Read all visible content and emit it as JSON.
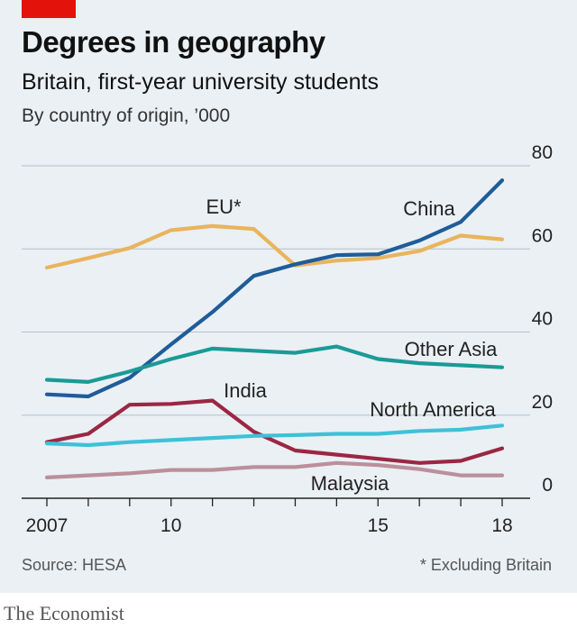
{
  "header": {
    "title": "Degrees in geography",
    "subtitle": "Britain, first-year university students",
    "unit": "By country of origin, ’000"
  },
  "footer": {
    "source": "Source: HESA",
    "footnote": "* Excluding Britain",
    "brand": "The Economist"
  },
  "colors": {
    "accent": "#e3120b",
    "panel": "#eaf0f4",
    "grid": "#b3c0c9"
  },
  "chart_data": {
    "type": "line",
    "x": [
      2007,
      2008,
      2009,
      2010,
      2011,
      2012,
      2013,
      2014,
      2015,
      2016,
      2017,
      2018
    ],
    "x_tick_values": [
      2007,
      2010,
      2015,
      2018
    ],
    "x_tick_labels": [
      "2007",
      "10",
      "15",
      "18"
    ],
    "xlim": [
      2007,
      2018
    ],
    "ylim": [
      0,
      80
    ],
    "y_ticks": [
      0,
      20,
      40,
      60,
      80
    ],
    "y_tick_labels": [
      "0",
      "20",
      "40",
      "60",
      "80"
    ],
    "grid": true,
    "y_axis_position": "right",
    "series": [
      {
        "name": "EU*",
        "color": "#e9b45c",
        "values": [
          55.5,
          57.8,
          60.2,
          64.5,
          65.5,
          64.8,
          56.0,
          57.2,
          57.8,
          59.5,
          63.2,
          62.3
        ]
      },
      {
        "name": "China",
        "color": "#1f5c99",
        "values": [
          25.0,
          24.5,
          29.0,
          37.0,
          44.8,
          53.5,
          56.3,
          58.5,
          58.7,
          62.0,
          66.5,
          76.5
        ]
      },
      {
        "name": "Other Asia",
        "color": "#1b9a96",
        "values": [
          28.5,
          28.0,
          30.5,
          33.5,
          36.0,
          35.5,
          35.0,
          36.5,
          33.5,
          32.5,
          32.0,
          31.5
        ]
      },
      {
        "name": "India",
        "color": "#9b2743",
        "values": [
          13.5,
          15.5,
          22.5,
          22.7,
          23.5,
          16.0,
          11.5,
          10.5,
          9.5,
          8.5,
          9.0,
          12.0
        ]
      },
      {
        "name": "North America",
        "color": "#3ec1d8",
        "values": [
          13.2,
          12.8,
          13.5,
          14.0,
          14.5,
          15.0,
          15.2,
          15.5,
          15.5,
          16.2,
          16.5,
          17.5
        ]
      },
      {
        "name": "Malaysia",
        "color": "#bb8f9b",
        "values": [
          5.0,
          5.5,
          6.0,
          6.8,
          6.8,
          7.5,
          7.5,
          8.5,
          8.0,
          7.0,
          5.5,
          5.5
        ]
      }
    ],
    "labels": [
      {
        "text": "EU*",
        "series": "EU*"
      },
      {
        "text": "China",
        "series": "China"
      },
      {
        "text": "Other Asia",
        "series": "Other Asia"
      },
      {
        "text": "India",
        "series": "India"
      },
      {
        "text": "North America",
        "series": "North America"
      },
      {
        "text": "Malaysia",
        "series": "Malaysia"
      }
    ]
  }
}
